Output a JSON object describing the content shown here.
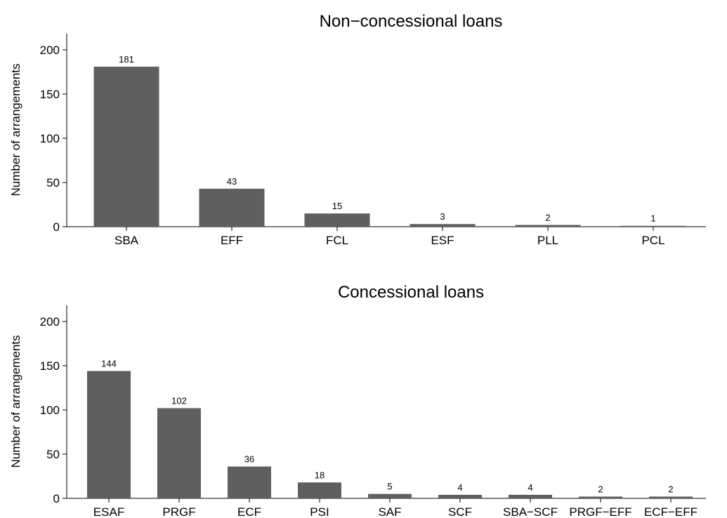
{
  "chart_data": [
    {
      "type": "bar",
      "title": "Non−concessional loans",
      "ylabel": "Number of arrangements",
      "xlabel": "",
      "categories": [
        "SBA",
        "EFF",
        "FCL",
        "ESF",
        "PLL",
        "PCL"
      ],
      "values": [
        181,
        43,
        15,
        3,
        2,
        1
      ],
      "ylim": [
        0,
        200
      ],
      "yticks": [
        0,
        50,
        100,
        150,
        200
      ],
      "grid": false,
      "bar_color": "#5f5f5f"
    },
    {
      "type": "bar",
      "title": "Concessional loans",
      "ylabel": "Number of arrangements",
      "xlabel": "",
      "categories": [
        "ESAF",
        "PRGF",
        "ECF",
        "PSI",
        "SAF",
        "SCF",
        "SBA−SCF",
        "PRGF−EFF",
        "ECF−EFF"
      ],
      "values": [
        144,
        102,
        36,
        18,
        5,
        4,
        4,
        2,
        2
      ],
      "ylim": [
        0,
        200
      ],
      "yticks": [
        0,
        50,
        100,
        150,
        200
      ],
      "grid": false,
      "bar_color": "#5f5f5f"
    }
  ]
}
